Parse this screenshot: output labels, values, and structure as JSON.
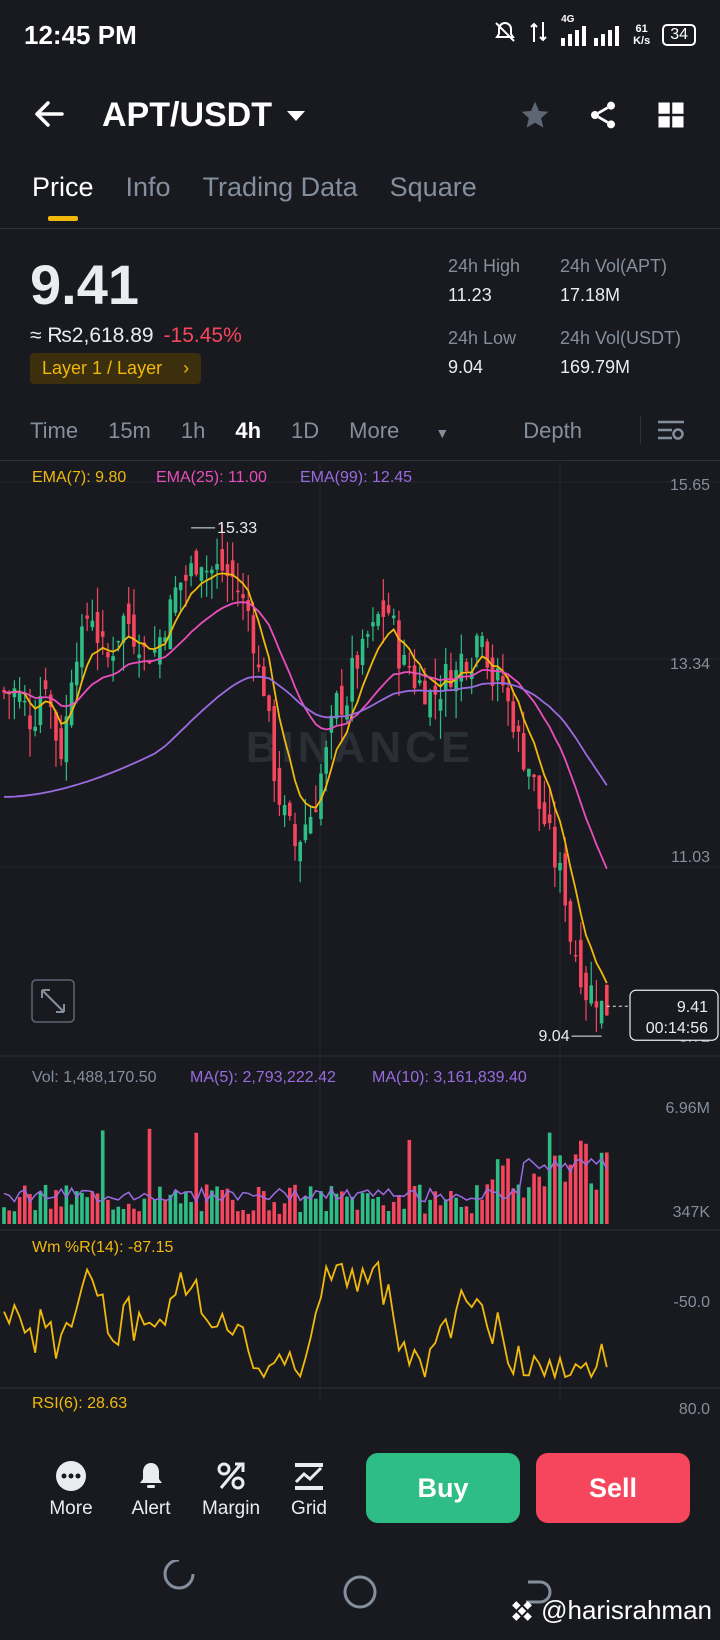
{
  "status_bar": {
    "time": "12:45 PM",
    "network": "4G",
    "speed_value": "61",
    "speed_unit": "K/s",
    "battery": "34"
  },
  "header": {
    "pair": "APT/USDT"
  },
  "tabs": [
    {
      "label": "Price",
      "active": true
    },
    {
      "label": "Info",
      "active": false
    },
    {
      "label": "Trading Data",
      "active": false
    },
    {
      "label": "Square",
      "active": false
    }
  ],
  "ticker": {
    "last_price": "9.41",
    "fiat_price": "≈ ₨2,618.89",
    "change_pct": "-15.45%",
    "category": "Layer 1 / Layer",
    "high_label": "24h High",
    "high_value": "11.23",
    "low_label": "24h Low",
    "low_value": "9.04",
    "vol_base_label": "24h Vol(APT)",
    "vol_base_value": "17.18M",
    "vol_quote_label": "24h Vol(USDT)",
    "vol_quote_value": "169.79M"
  },
  "intervals": {
    "items": [
      "Time",
      "15m",
      "1h",
      "4h",
      "1D",
      "More",
      "Depth"
    ],
    "active": "4h"
  },
  "indicators": {
    "ema7": "EMA(7): 9.80",
    "ema25": "EMA(25): 11.00",
    "ema99": "EMA(99): 12.45",
    "vol": "Vol: 1,488,170.50",
    "ma5": "MA(5): 2,793,222.42",
    "ma10": "MA(10): 3,161,839.40",
    "wr": "Wm %R(14): -87.15",
    "rsi": "RSI(6): 28.63"
  },
  "price_axis": [
    "15.65",
    "13.34",
    "11.03",
    "8.72"
  ],
  "vol_axis": [
    "6.96M",
    "347K"
  ],
  "wr_axis": [
    "-50.0"
  ],
  "rsi_axis": [
    "80.0"
  ],
  "markers": {
    "high": "15.33",
    "low": "9.04",
    "last": "9.41",
    "countdown": "00:14:56"
  },
  "watermark_logo": "BINANCE",
  "bottom_bar": {
    "items": [
      {
        "label": "More",
        "icon": "more-icon"
      },
      {
        "label": "Alert",
        "icon": "bell-icon"
      },
      {
        "label": "Margin",
        "icon": "margin-icon"
      },
      {
        "label": "Grid",
        "icon": "grid-bot-icon"
      }
    ],
    "buy": "Buy",
    "sell": "Sell"
  },
  "credit": "@harisrahman",
  "colors": {
    "up": "#2ebd85",
    "down": "#f6465d",
    "ema7": "#f0b90b",
    "ema25": "#e94ebd",
    "ema99": "#9b6bdf",
    "accent": "#f0b90b"
  },
  "chart_data": {
    "type": "candlestick",
    "price_range": [
      8.72,
      15.65
    ],
    "candles_approx_close": [
      13.3,
      13.0,
      13.5,
      12.6,
      13.9,
      14.3,
      13.7,
      14.2,
      14.0,
      13.8,
      14.3,
      14.7,
      15.0,
      14.8,
      14.7,
      14.3,
      13.4,
      12.0,
      11.4,
      11.8,
      12.5,
      13.2,
      13.7,
      14.0,
      14.3,
      13.6,
      13.4,
      13.3,
      13.6,
      13.8,
      14.2,
      13.4,
      13.0,
      12.4,
      11.7,
      11.0,
      10.1,
      9.6,
      9.4
    ],
    "ema7_last": 9.8,
    "ema25_last": 11.0,
    "ema99_last": 12.45,
    "high_marker": 15.33,
    "low_marker": 9.04,
    "last_price": 9.41
  }
}
